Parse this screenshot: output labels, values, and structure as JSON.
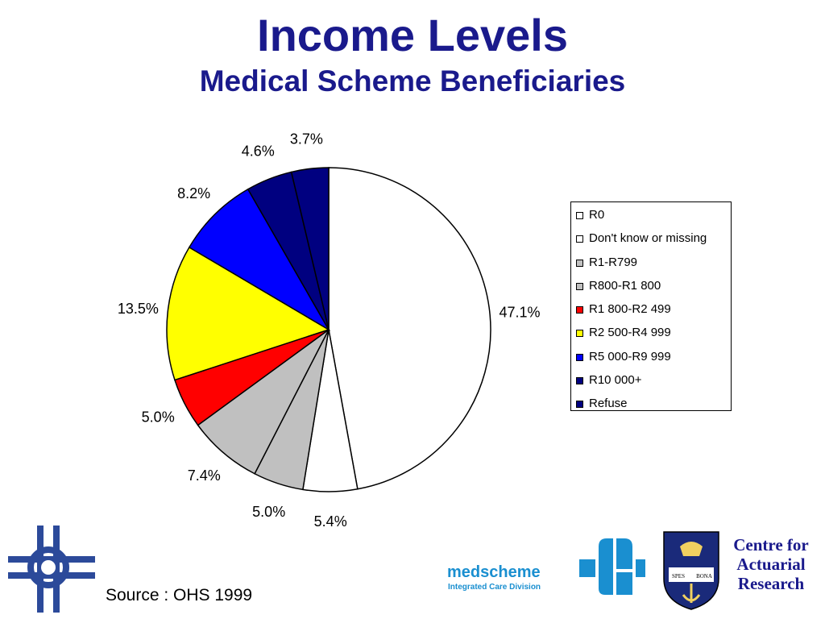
{
  "title": "Income Levels",
  "subtitle": "Medical Scheme Beneficiaries",
  "source": "Source : OHS 1999",
  "branding": {
    "medscheme_name": "medscheme",
    "medscheme_division": "Integrated Care Division",
    "centre_line1": "Centre for",
    "centre_line2": "Actuarial",
    "centre_line3": "Research",
    "crest_book_left": "SPES",
    "crest_book_right": "BONA"
  },
  "chart_data": {
    "type": "pie",
    "title": "Income Levels",
    "subtitle": "Medical Scheme Beneficiaries",
    "start_angle": "12 o'clock",
    "direction": "clockwise",
    "legend_position": "right",
    "slices": [
      {
        "label": "R0",
        "value": 47.1,
        "display": "47.1%",
        "color": "#ffffff"
      },
      {
        "label": "Don't know or missing",
        "value": 5.4,
        "display": "5.4%",
        "color": "#ffffff"
      },
      {
        "label": "R1-R799",
        "value": 5.0,
        "display": "5.0%",
        "color": "#c0c0c0"
      },
      {
        "label": "R800-R1 800",
        "value": 7.4,
        "display": "7.4%",
        "color": "#c0c0c0"
      },
      {
        "label": "R1 800-R2 499",
        "value": 5.0,
        "display": "5.0%",
        "color": "#ff0000"
      },
      {
        "label": "R2 500-R4 999",
        "value": 13.5,
        "display": "13.5%",
        "color": "#ffff00"
      },
      {
        "label": "R5 000-R9 999",
        "value": 8.2,
        "display": "8.2%",
        "color": "#0000ff"
      },
      {
        "label": "R10 000+",
        "value": 4.6,
        "display": "4.6%",
        "color": "#000080"
      },
      {
        "label": "Refuse",
        "value": 3.7,
        "display": "3.7%",
        "color": "#000080"
      }
    ]
  }
}
